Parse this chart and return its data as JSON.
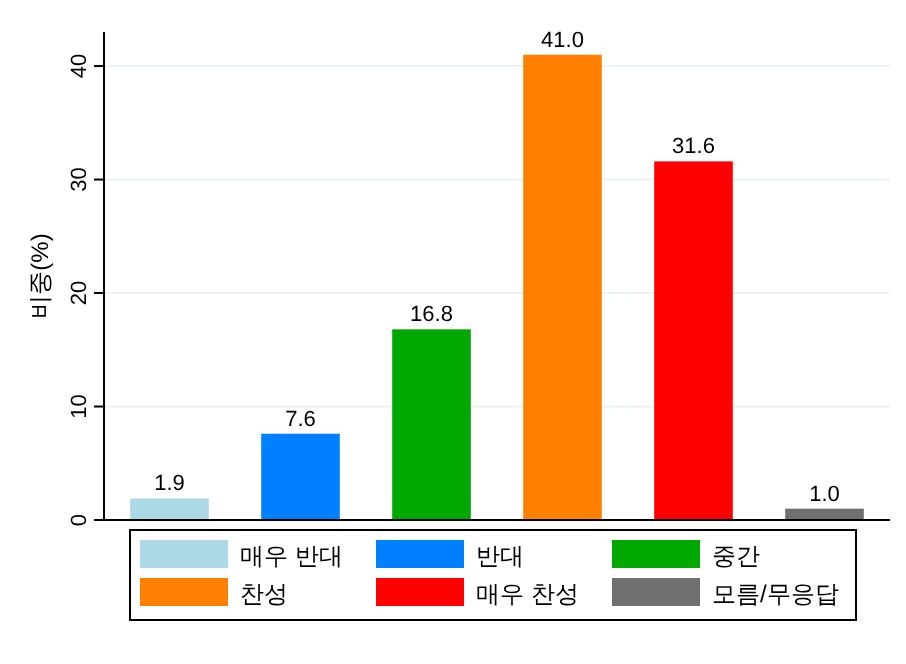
{
  "chart_data": {
    "type": "bar",
    "ylabel": "비중(%)",
    "categories": [
      null,
      null,
      null,
      null,
      null,
      null
    ],
    "series": [
      {
        "name": "매우 반대",
        "color": "#add8e6",
        "values": [
          1.9,
          null,
          null,
          null,
          null,
          null
        ],
        "value_labels": [
          "1.9",
          null,
          null,
          null,
          null,
          null
        ]
      },
      {
        "name": "반대",
        "color": "#0080ff",
        "values": [
          null,
          7.6,
          null,
          null,
          null,
          null
        ],
        "value_labels": [
          null,
          "7.6",
          null,
          null,
          null,
          null
        ]
      },
      {
        "name": "중간",
        "color": "#00a800",
        "values": [
          null,
          null,
          16.8,
          null,
          null,
          null
        ],
        "value_labels": [
          null,
          null,
          "16.8",
          null,
          null,
          null
        ]
      },
      {
        "name": "찬성",
        "color": "#ff8000",
        "values": [
          null,
          null,
          null,
          41,
          null,
          null
        ],
        "value_labels": [
          null,
          null,
          null,
          "41.0",
          null,
          null
        ]
      },
      {
        "name": "매우 찬성",
        "color": "#ff0000",
        "values": [
          null,
          null,
          null,
          null,
          31.6,
          null
        ],
        "value_labels": [
          null,
          null,
          null,
          null,
          "31.6",
          null
        ]
      },
      {
        "name": "모름/무응답",
        "color": "#707070",
        "values": [
          null,
          null,
          null,
          null,
          null,
          1
        ],
        "value_labels": [
          null,
          null,
          null,
          null,
          null,
          "1.0"
        ]
      }
    ],
    "ylim": [
      0,
      43
    ],
    "yticks": [
      0,
      10,
      20,
      30,
      40
    ],
    "grid": "y",
    "legend": "bottom"
  }
}
